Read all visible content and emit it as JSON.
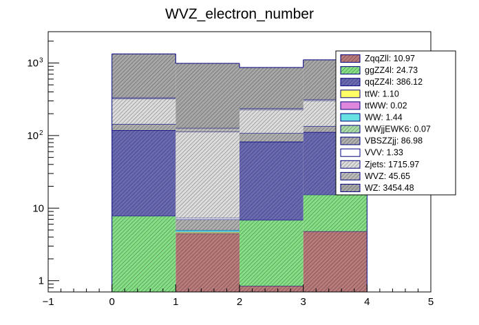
{
  "chart_data": {
    "type": "bar",
    "title": "WVZ_electron_number",
    "stacked": true,
    "y_scale": "log",
    "xlim": [
      -1,
      5
    ],
    "ylim": [
      0.7,
      2700
    ],
    "x_tick_labels": [
      "−1",
      "0",
      "1",
      "2",
      "3",
      "4",
      "5"
    ],
    "y_tick_labels": [
      "1",
      "10",
      "10²",
      "10³"
    ],
    "bin_edges": [
      0,
      1,
      2,
      3,
      4
    ],
    "series": [
      {
        "name": "ZqqZll: 10.97",
        "color": "#b97b7b",
        "hatch": true,
        "values": [
          0,
          4.5,
          0.85,
          4.8
        ]
      },
      {
        "name": "ggZZ4l: 24.73",
        "color": "#86e086",
        "hatch": true,
        "values": [
          7.8,
          0,
          6.0,
          10.5
        ]
      },
      {
        "name": "qqZZ4l: 386.12",
        "color": "#6a6ab4",
        "hatch": true,
        "values": [
          110,
          0,
          75,
          96
        ]
      },
      {
        "name": "ttW: 1.10",
        "color": "#ffff66",
        "hatch": false,
        "values": [
          0.3,
          0.2,
          0.3,
          0.3
        ]
      },
      {
        "name": "ttWW: 0.02",
        "color": "#dd88dd",
        "hatch": false,
        "values": [
          0,
          0,
          0,
          0
        ]
      },
      {
        "name": "WW: 1.44",
        "color": "#66e0e0",
        "hatch": false,
        "values": [
          0.4,
          0.3,
          0.4,
          0.3
        ]
      },
      {
        "name": "WWjjEWK6: 0.07",
        "color": "#aaddaa",
        "hatch": true,
        "values": [
          0,
          0,
          0,
          0
        ]
      },
      {
        "name": "VBSZZjj: 86.98",
        "color": "#b0b0b0",
        "hatch": true,
        "values": [
          25,
          2,
          25,
          22
        ]
      },
      {
        "name": "VVV: 1.33",
        "color": "#ffffff",
        "hatch": false,
        "values": [
          0.3,
          0.3,
          0.3,
          0.4
        ]
      },
      {
        "name": "Zjets: 1715.97",
        "color": "#dddddd",
        "hatch": true,
        "values": [
          180,
          105,
          120,
          170
        ]
      },
      {
        "name": "WVZ: 45.65",
        "color": "#bbbbbb",
        "hatch": true,
        "values": [
          10,
          15,
          10,
          12
        ]
      },
      {
        "name": "WZ: 3454.48",
        "color": "#a8a8a8",
        "hatch": true,
        "values": [
          1000,
          860,
          630,
          790
        ]
      }
    ],
    "legend_position": "top-right",
    "grid": false
  }
}
